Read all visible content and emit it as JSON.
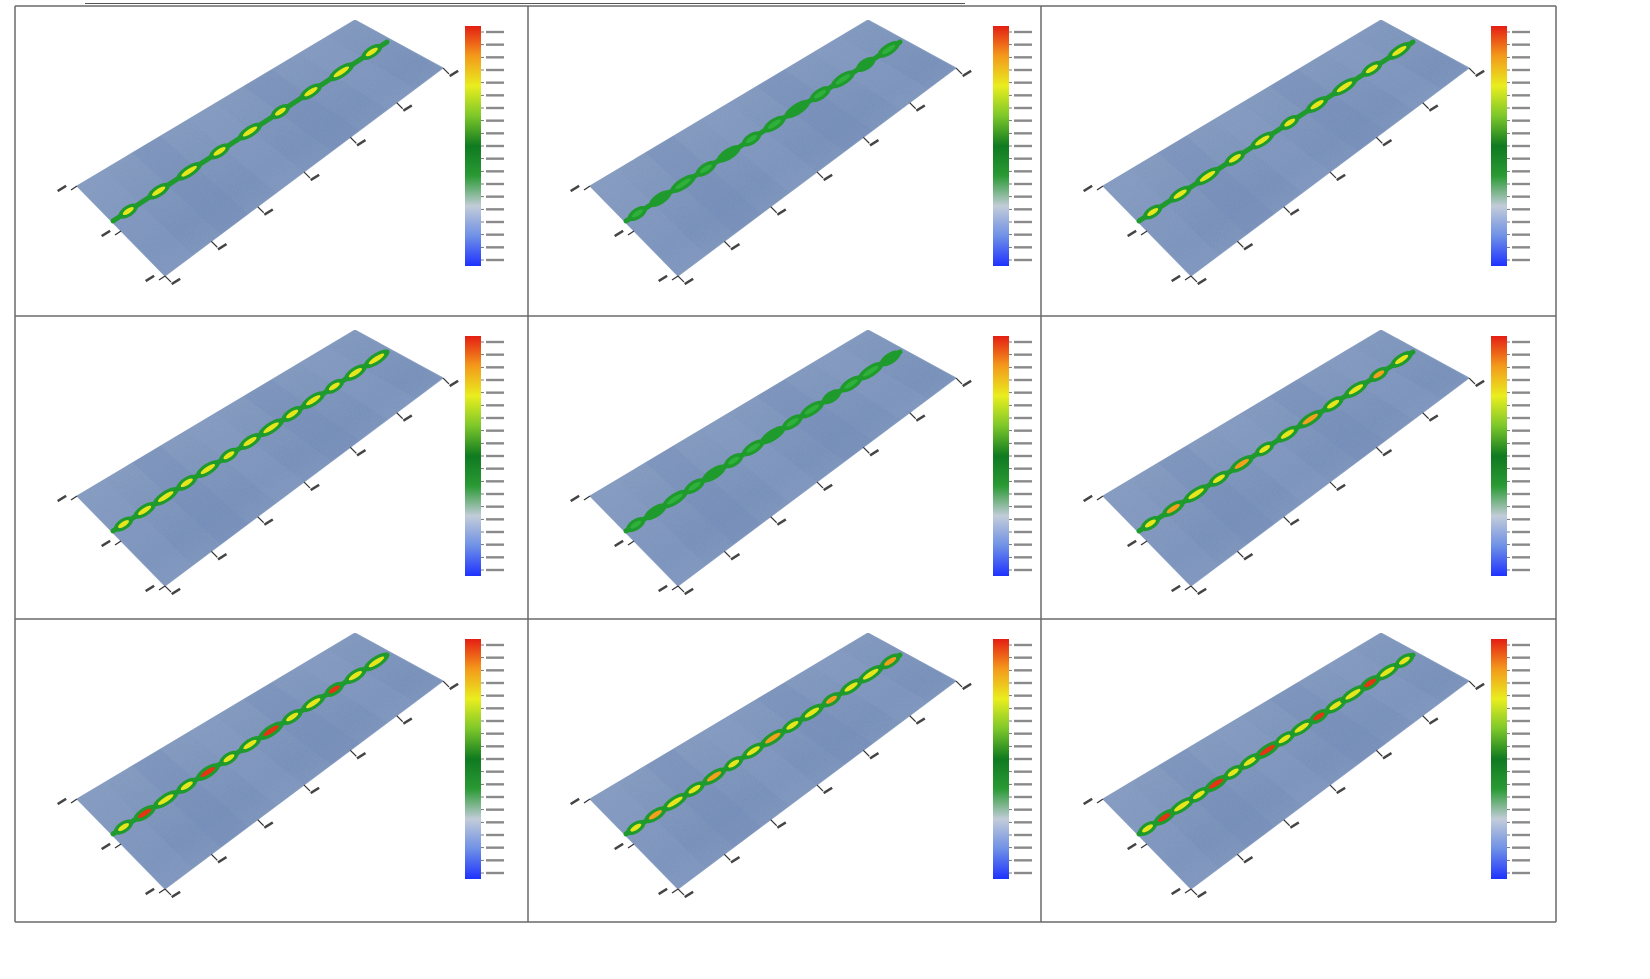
{
  "figure": {
    "rows": 3,
    "cols": 3,
    "colors": {
      "grid_line": "#6a6a6a",
      "surface_base": "#7f98c2",
      "surface_edge": "#9db0cf",
      "track_green": "#1f9a2c",
      "track_yellow": "#e7e61c",
      "track_red": "#e63312",
      "colorbar_stops": [
        "#1e32ff",
        "#6e90e6",
        "#c2ccd8",
        "#2a9a34",
        "#0f7a20",
        "#7cc72a",
        "#e9ee1e",
        "#f39a1b",
        "#e41e14"
      ]
    },
    "panels": [
      {
        "id": "r1c1",
        "peak": "yellow",
        "blobs": 9
      },
      {
        "id": "r1c2",
        "peak": "green",
        "blobs": 12
      },
      {
        "id": "r1c3",
        "peak": "yellow",
        "blobs": 10
      },
      {
        "id": "r2c1",
        "peak": "yellow",
        "blobs": 13
      },
      {
        "id": "r2c2",
        "peak": "green",
        "blobs": 14
      },
      {
        "id": "r2c3",
        "peak": "orange",
        "blobs": 12
      },
      {
        "id": "r3c1",
        "peak": "red",
        "blobs": 13
      },
      {
        "id": "r3c2",
        "peak": "orange",
        "blobs": 14
      },
      {
        "id": "r3c3",
        "peak": "red",
        "blobs": 16
      }
    ]
  }
}
